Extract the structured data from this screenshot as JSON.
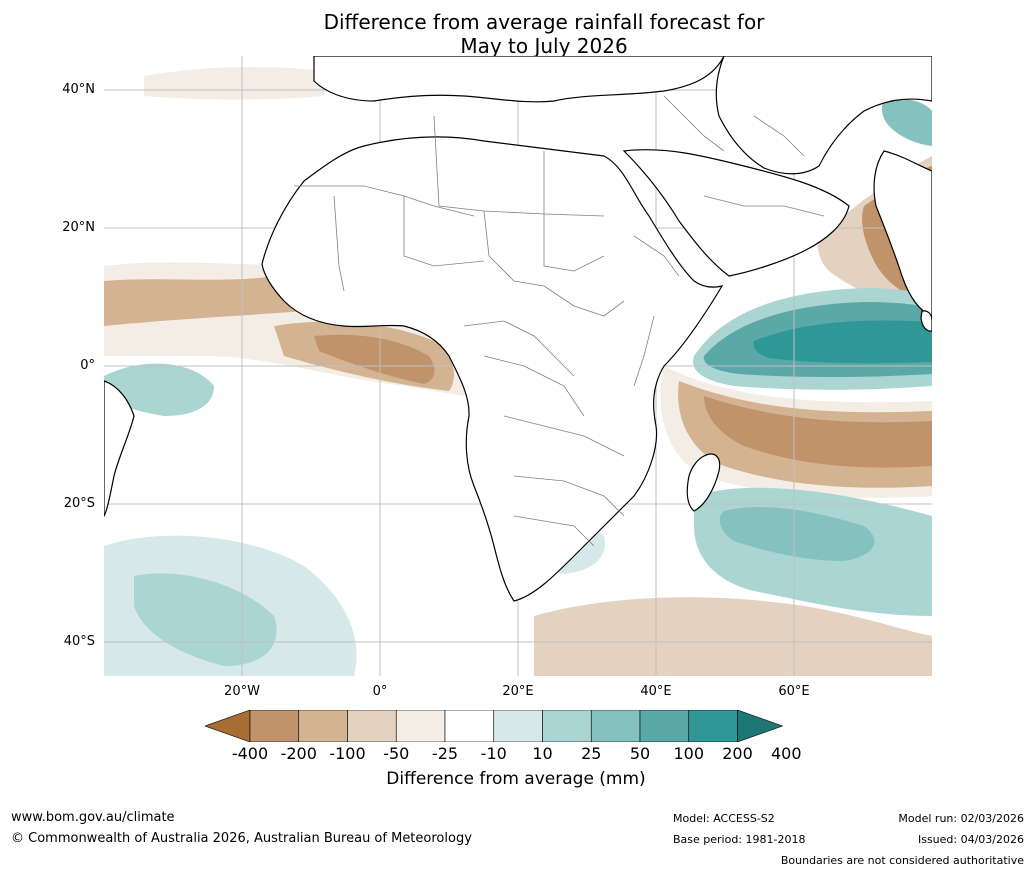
{
  "title": {
    "line1": "Difference from average rainfall forecast for",
    "line2": "May to July 2026"
  },
  "map": {
    "lat_labels": [
      "40°N",
      "20°N",
      "0°",
      "20°S",
      "40°S"
    ],
    "lon_labels": [
      "20°W",
      "0°",
      "20°E",
      "40°E",
      "60°E"
    ],
    "lat_range": [
      -45,
      45
    ],
    "lon_range": [
      -40,
      80
    ],
    "ocean_color": "#ffffff",
    "land_color": "#ffffff",
    "coast_color": "#000000",
    "border_color": "#808080"
  },
  "colorbar": {
    "tick_labels": [
      "-400",
      "-200",
      "-100",
      "-50",
      "-25",
      "-10",
      "10",
      "25",
      "50",
      "100",
      "200",
      "400"
    ],
    "colors": [
      "#a86c35",
      "#c0936a",
      "#d4b393",
      "#e3d2bf",
      "#f3ede5",
      "#ffffff",
      "#d6e9e8",
      "#aad5d3",
      "#84c1bf",
      "#5aa8a7",
      "#2f9896",
      "#1d7775"
    ],
    "label": "Difference from average (mm)"
  },
  "footer": {
    "website": "www.bom.gov.au/climate",
    "copyright": "© Commonwealth of Australia 2026, Australian Bureau of Meteorology",
    "model": "Model: ACCESS-S2",
    "base_period": "Base period: 1981-2018",
    "model_run": "Model run: 02/03/2026",
    "issued": "Issued: 04/03/2026",
    "disclaimer": "Boundaries are not considered authoritative"
  }
}
